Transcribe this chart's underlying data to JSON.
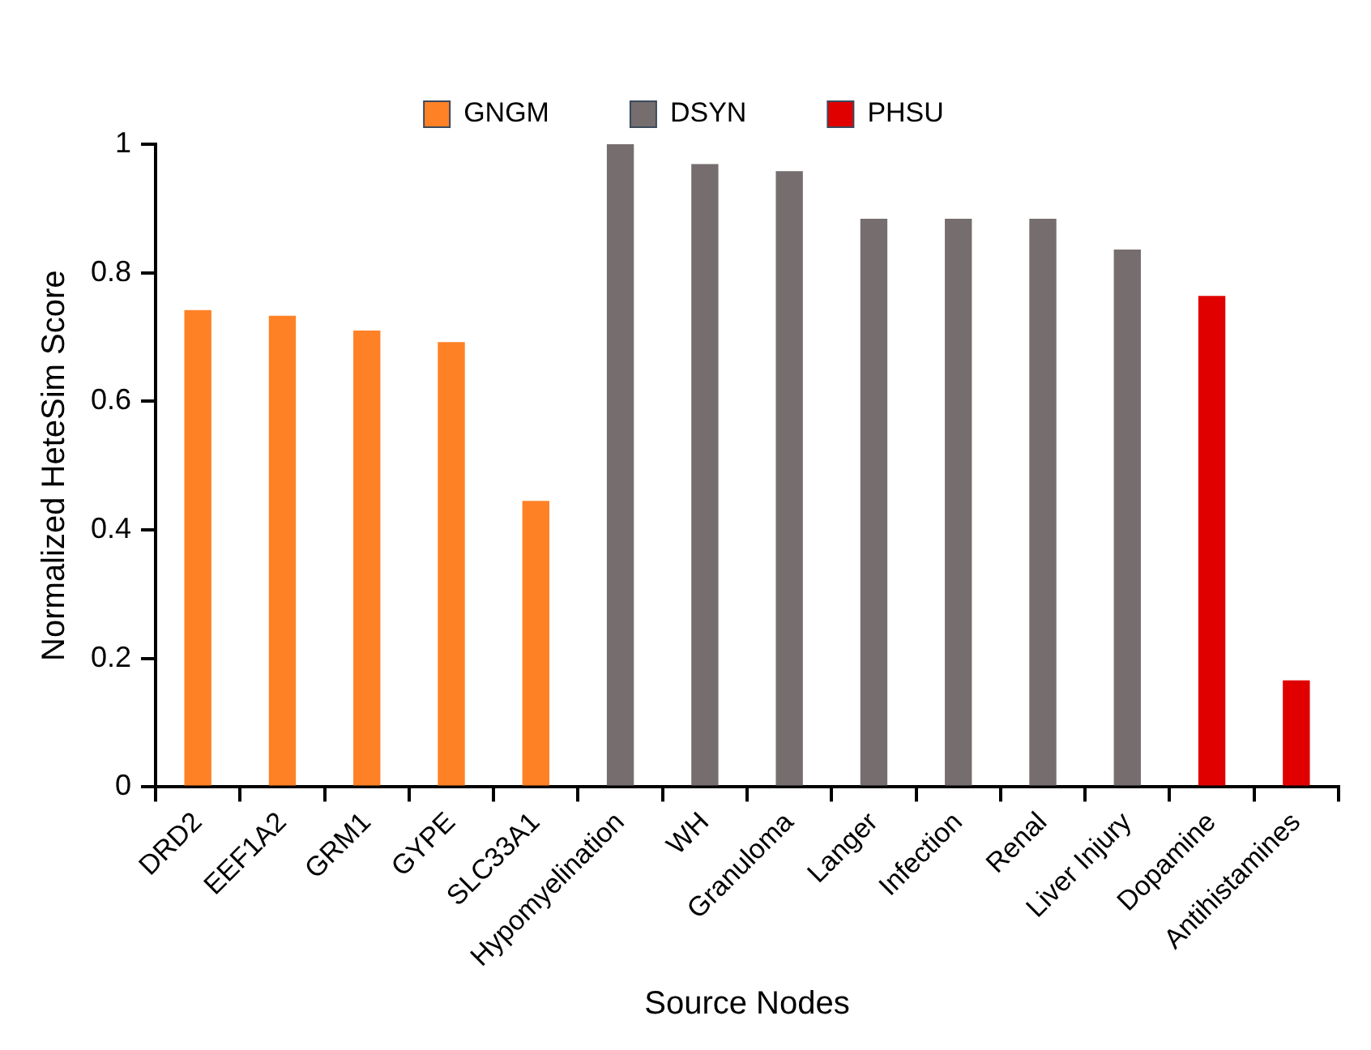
{
  "chart_data": {
    "type": "bar",
    "xlabel": "Source Nodes",
    "ylabel": "Normalized HeteSim Score",
    "categories": [
      "DRD2",
      "EEF1A2",
      "GRM1",
      "GYPE",
      "SLC33A1",
      "Hypomyelination",
      "WH",
      "Granuloma",
      "Langer",
      "Infection",
      "Renal",
      "Liver Injury",
      "Dopamine",
      "Antihistamines"
    ],
    "series": [
      {
        "name": "GNGM",
        "color": "#ff8125",
        "values": [
          0.742,
          0.733,
          0.71,
          0.692,
          0.445,
          null,
          null,
          null,
          null,
          null,
          null,
          null,
          null,
          null
        ]
      },
      {
        "name": "DSYN",
        "color": "#766e6e",
        "values": [
          null,
          null,
          null,
          null,
          null,
          1,
          0.969,
          0.958,
          0.884,
          0.884,
          0.884,
          0.836,
          null,
          null
        ]
      },
      {
        "name": "PHSU",
        "color": "#e00000",
        "values": [
          null,
          null,
          null,
          null,
          null,
          null,
          null,
          null,
          null,
          null,
          null,
          null,
          0.764,
          0.166
        ]
      }
    ],
    "ylim": [
      0,
      1
    ],
    "yticks": [
      0,
      0.2,
      0.4,
      0.6,
      0.8,
      1
    ],
    "grid": false,
    "legend": "top"
  }
}
